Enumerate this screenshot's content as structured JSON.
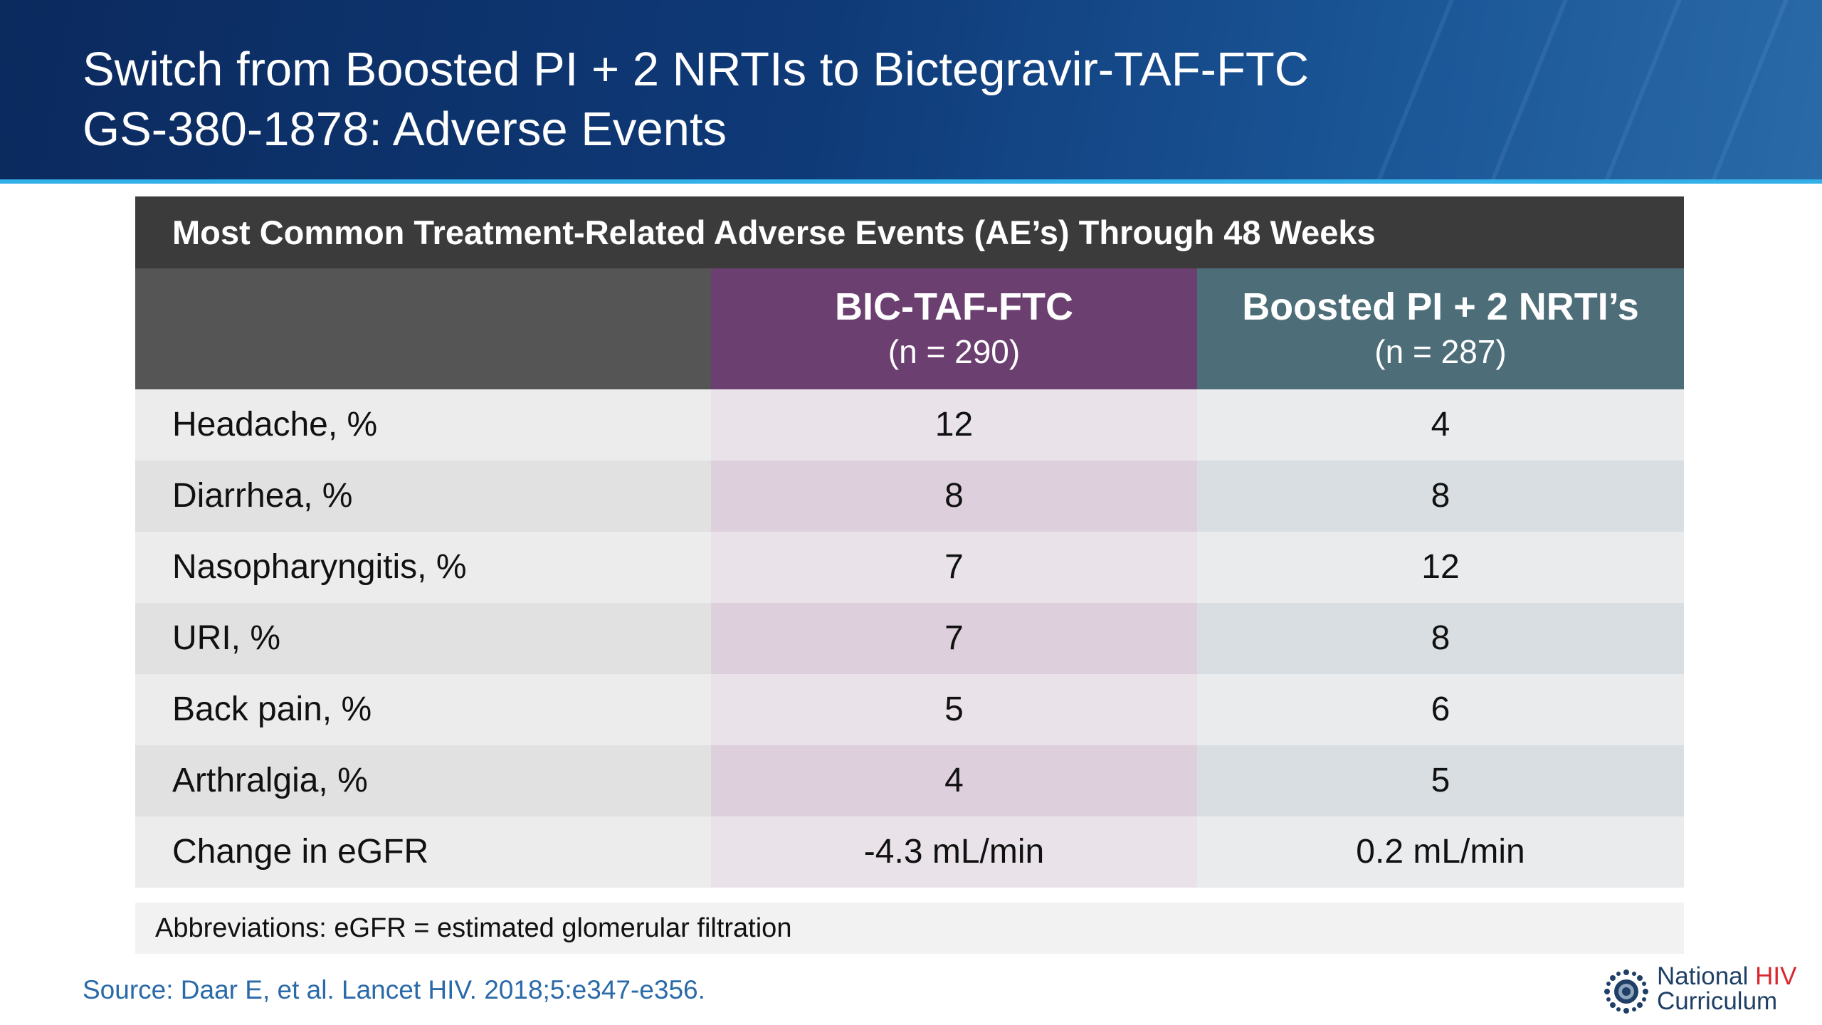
{
  "slide": {
    "title_line1": "Switch from Boosted PI + 2 NRTIs to Bictegravir-TAF-FTC",
    "title_line2": "GS-380-1878: Adverse Events"
  },
  "table": {
    "title": "Most Common Treatment-Related Adverse Events (AE’s) Through 48 Weeks",
    "columns": [
      {
        "name": "BIC-TAF-FTC",
        "n": "(n = 290)",
        "color": "#6b3f70"
      },
      {
        "name": "Boosted PI + 2 NRTI’s",
        "n": "(n = 287)",
        "color": "#4d6e79"
      }
    ],
    "rows": [
      {
        "label": "Headache, %",
        "values": [
          "12",
          "4"
        ]
      },
      {
        "label": "Diarrhea, %",
        "values": [
          "8",
          "8"
        ]
      },
      {
        "label": "Nasopharyngitis, %",
        "values": [
          "7",
          "12"
        ]
      },
      {
        "label": "URI, %",
        "values": [
          "7",
          "8"
        ]
      },
      {
        "label": "Back pain, %",
        "values": [
          "5",
          "6"
        ]
      },
      {
        "label": "Arthralgia, %",
        "values": [
          "4",
          "5"
        ]
      },
      {
        "label": "Change in eGFR",
        "values": [
          "-4.3 mL/min",
          "0.2 mL/min"
        ]
      }
    ]
  },
  "abbreviations": "Abbreviations: eGFR = estimated glomerular filtration",
  "source": "Source: Daar E, et al. Lancet HIV. 2018;5:e347-e356.",
  "logo": {
    "icon": "national-hiv-curriculum-logo-icon",
    "word1": "National",
    "word2": "HIV",
    "word3": "Curriculum"
  },
  "colors": {
    "header": "#0f3a78",
    "accent_line": "#33b0e8",
    "source_text": "#2a6aa8",
    "logo_red": "#d9272e"
  }
}
